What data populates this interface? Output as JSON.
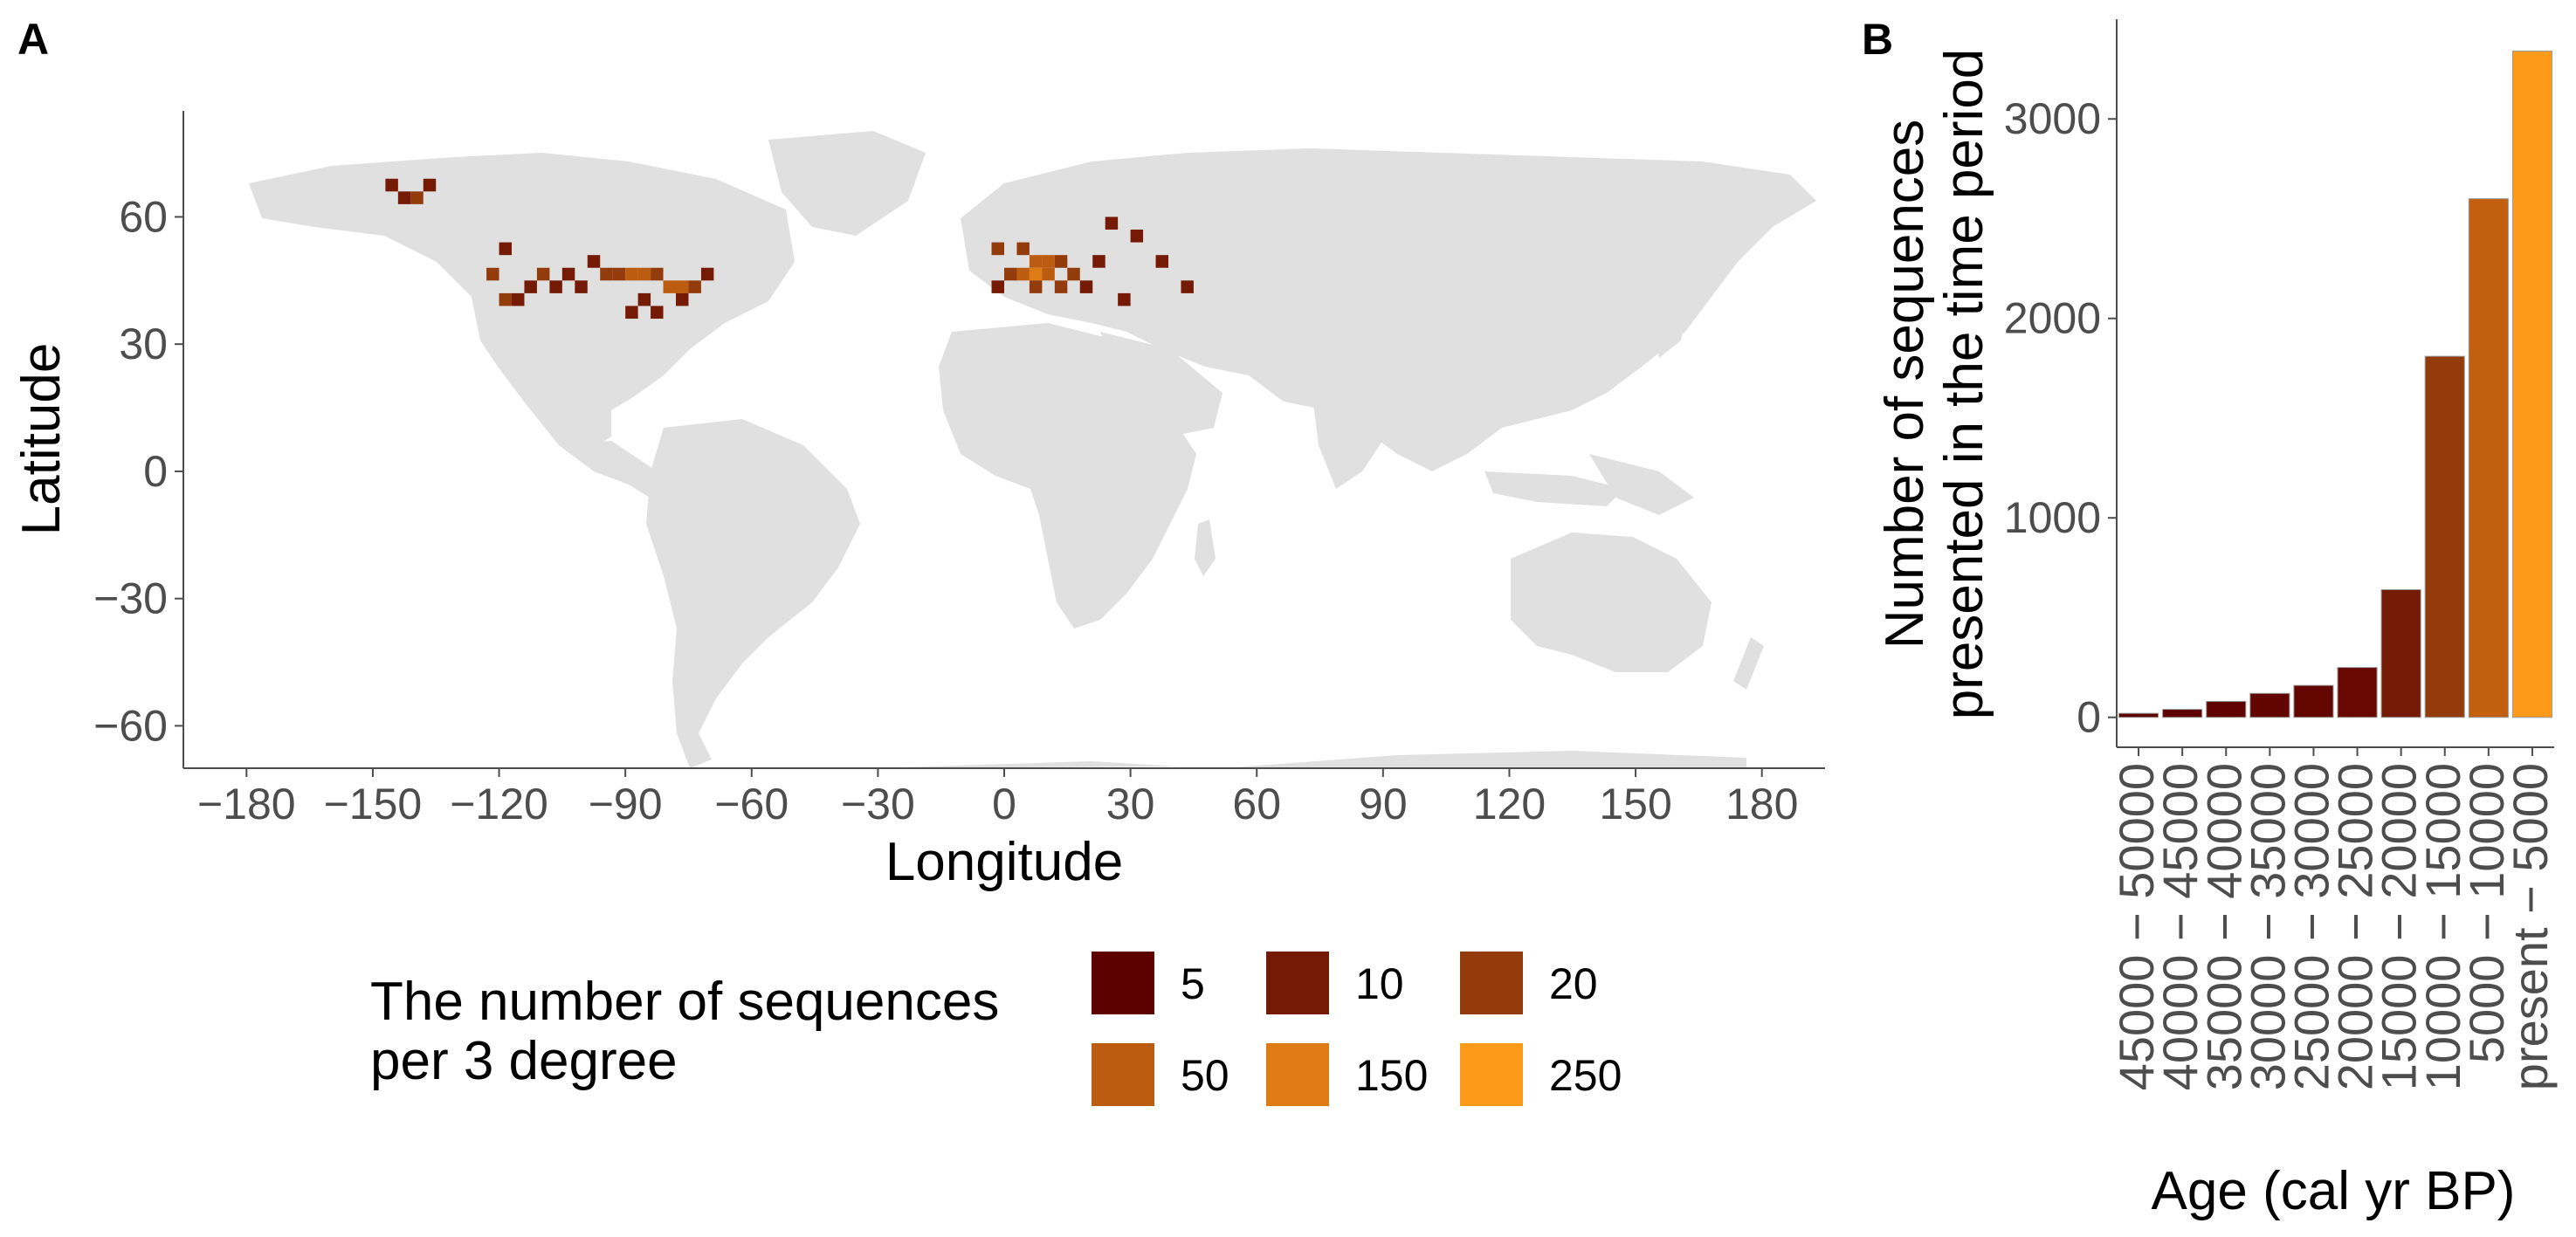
{
  "panel_a_letter": "A",
  "panel_b_letter": "B",
  "chart_data": [
    {
      "type": "heatmap",
      "panel": "A",
      "xlabel": "Longitude",
      "ylabel": "Latitude",
      "xlim": [
        -195,
        195
      ],
      "ylim": [
        -70,
        85
      ],
      "x_ticks": [
        -180,
        -150,
        -120,
        -90,
        -60,
        -30,
        0,
        30,
        60,
        90,
        120,
        150,
        180
      ],
      "y_ticks": [
        -60,
        -30,
        0,
        30,
        60
      ],
      "x_tick_labels": [
        "−180",
        "−150",
        "−120",
        "−90",
        "−60",
        "−30",
        "0",
        "30",
        "60",
        "90",
        "120",
        "150",
        "180"
      ],
      "y_tick_labels": [
        "−60",
        "−30",
        "0",
        "30",
        "60"
      ],
      "cell_size_deg": 3,
      "grid": false,
      "legend": {
        "title_line1": "The number of sequences",
        "title_line2": "per 3 degree",
        "position": "bottom",
        "entries": [
          {
            "label": "5",
            "value": 5,
            "color": "#5c0000"
          },
          {
            "label": "10",
            "value": 10,
            "color": "#741a05"
          },
          {
            "label": "20",
            "value": 20,
            "color": "#943b0c"
          },
          {
            "label": "50",
            "value": 50,
            "color": "#bb5c10"
          },
          {
            "label": "150",
            "value": 150,
            "color": "#df7b14"
          },
          {
            "label": "250",
            "value": 250,
            "color": "#fd9a1a"
          }
        ]
      },
      "cells": [
        {
          "lon": -141,
          "lat": 63,
          "value": 20
        },
        {
          "lon": -144,
          "lat": 63,
          "value": 10
        },
        {
          "lon": -138,
          "lat": 66,
          "value": 10
        },
        {
          "lon": -147,
          "lat": 66,
          "value": 10
        },
        {
          "lon": -120,
          "lat": 51,
          "value": 10
        },
        {
          "lon": -123,
          "lat": 45,
          "value": 20
        },
        {
          "lon": -120,
          "lat": 39,
          "value": 20
        },
        {
          "lon": -117,
          "lat": 39,
          "value": 10
        },
        {
          "lon": -111,
          "lat": 45,
          "value": 20
        },
        {
          "lon": -114,
          "lat": 42,
          "value": 10
        },
        {
          "lon": -108,
          "lat": 42,
          "value": 10
        },
        {
          "lon": -105,
          "lat": 45,
          "value": 10
        },
        {
          "lon": -102,
          "lat": 42,
          "value": 10
        },
        {
          "lon": -99,
          "lat": 48,
          "value": 10
        },
        {
          "lon": -96,
          "lat": 45,
          "value": 20
        },
        {
          "lon": -93,
          "lat": 45,
          "value": 20
        },
        {
          "lon": -90,
          "lat": 45,
          "value": 50
        },
        {
          "lon": -87,
          "lat": 45,
          "value": 50
        },
        {
          "lon": -84,
          "lat": 45,
          "value": 20
        },
        {
          "lon": -81,
          "lat": 42,
          "value": 50
        },
        {
          "lon": -78,
          "lat": 42,
          "value": 50
        },
        {
          "lon": -75,
          "lat": 42,
          "value": 20
        },
        {
          "lon": -72,
          "lat": 45,
          "value": 10
        },
        {
          "lon": -87,
          "lat": 39,
          "value": 10
        },
        {
          "lon": -90,
          "lat": 36,
          "value": 10
        },
        {
          "lon": -84,
          "lat": 36,
          "value": 10
        },
        {
          "lon": -78,
          "lat": 39,
          "value": 10
        },
        {
          "lon": 3,
          "lat": 51,
          "value": 20
        },
        {
          "lon": 6,
          "lat": 48,
          "value": 50
        },
        {
          "lon": 9,
          "lat": 48,
          "value": 50
        },
        {
          "lon": 3,
          "lat": 45,
          "value": 50
        },
        {
          "lon": 6,
          "lat": 45,
          "value": 150
        },
        {
          "lon": 9,
          "lat": 45,
          "value": 50
        },
        {
          "lon": 12,
          "lat": 48,
          "value": 20
        },
        {
          "lon": 15,
          "lat": 45,
          "value": 20
        },
        {
          "lon": 0,
          "lat": 45,
          "value": 20
        },
        {
          "lon": -3,
          "lat": 51,
          "value": 20
        },
        {
          "lon": -3,
          "lat": 42,
          "value": 10
        },
        {
          "lon": 6,
          "lat": 42,
          "value": 20
        },
        {
          "lon": 12,
          "lat": 42,
          "value": 20
        },
        {
          "lon": 18,
          "lat": 42,
          "value": 10
        },
        {
          "lon": 21,
          "lat": 48,
          "value": 10
        },
        {
          "lon": 24,
          "lat": 57,
          "value": 10
        },
        {
          "lon": 30,
          "lat": 54,
          "value": 10
        },
        {
          "lon": 36,
          "lat": 48,
          "value": 10
        },
        {
          "lon": 42,
          "lat": 42,
          "value": 10
        },
        {
          "lon": 27,
          "lat": 39,
          "value": 10
        }
      ]
    },
    {
      "type": "bar",
      "panel": "B",
      "xlabel": "Age (cal yr BP)",
      "ylabel_line1": "Number of sequences",
      "ylabel_line2": "presented in the time period",
      "categories": [
        "45000 − 50000",
        "40000 − 45000",
        "35000 − 40000",
        "30000 − 35000",
        "25000 − 30000",
        "20000 − 25000",
        "15000 − 20000",
        "10000 − 15000",
        "5000 − 10000",
        "present − 5000"
      ],
      "values": [
        20,
        40,
        80,
        120,
        160,
        250,
        640,
        1810,
        2600,
        3340
      ],
      "colors": [
        "#5c0000",
        "#5e0100",
        "#600200",
        "#620400",
        "#640600",
        "#680800",
        "#741a05",
        "#943b0c",
        "#c2600f",
        "#fd9a1a"
      ],
      "ylim": [
        -150,
        3500
      ],
      "y_ticks": [
        0,
        1000,
        2000,
        3000
      ],
      "y_tick_labels": [
        "0",
        "1000",
        "2000",
        "3000"
      ],
      "grid": false
    }
  ]
}
